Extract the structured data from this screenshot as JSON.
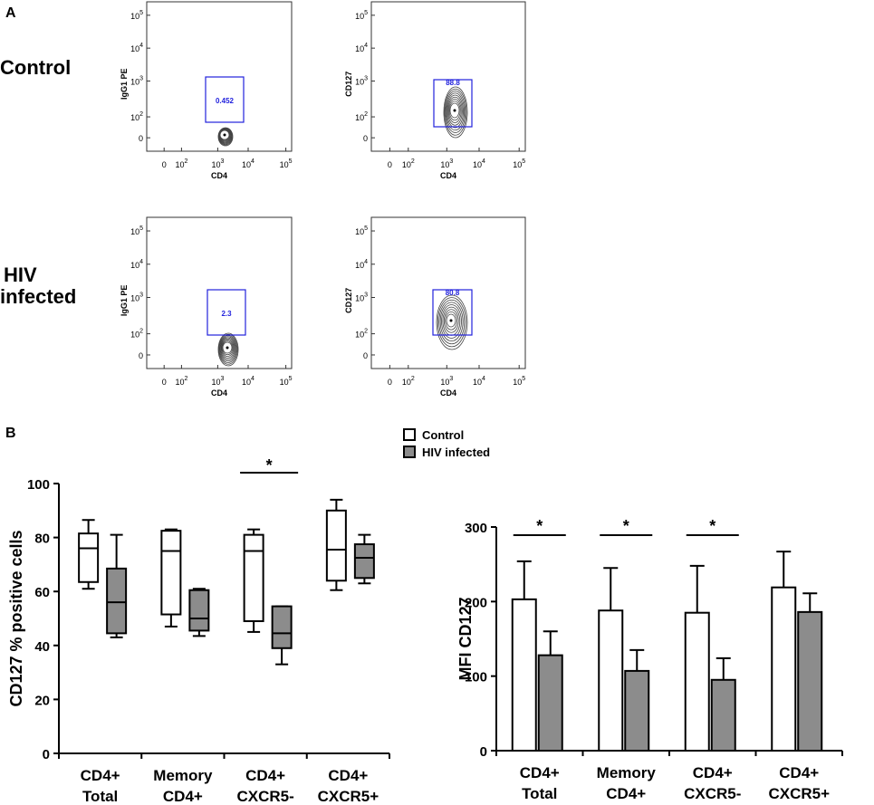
{
  "panel_a_label": "A",
  "panel_b_label": "B",
  "row_labels": {
    "control": "Control",
    "hiv_line1": "HIV",
    "hiv_line2": "infected"
  },
  "gate_color": "#2222dd",
  "flow_panels": [
    {
      "id": "control-igg1",
      "ylabel": "IgG1 PE",
      "xlabel": "CD4",
      "gate_value": "0.452",
      "y_ticks": [
        {
          "base": "10",
          "exp": "5"
        },
        {
          "base": "10",
          "exp": "4"
        },
        {
          "base": "10",
          "exp": "3"
        },
        {
          "base": "10",
          "exp": "2"
        },
        {
          "base": "0",
          "exp": ""
        }
      ],
      "x_ticks": [
        {
          "base": "0",
          "exp": ""
        },
        {
          "base": "10",
          "exp": "2"
        },
        {
          "base": "10",
          "exp": "3"
        },
        {
          "base": "10",
          "exp": "4"
        },
        {
          "base": "10",
          "exp": "5"
        }
      ]
    },
    {
      "id": "control-cd127",
      "ylabel": "CD127",
      "xlabel": "CD4",
      "gate_value": "88.8",
      "y_ticks": [
        {
          "base": "10",
          "exp": "5"
        },
        {
          "base": "10",
          "exp": "4"
        },
        {
          "base": "10",
          "exp": "3"
        },
        {
          "base": "10",
          "exp": "2"
        },
        {
          "base": "0",
          "exp": ""
        }
      ],
      "x_ticks": [
        {
          "base": "0",
          "exp": ""
        },
        {
          "base": "10",
          "exp": "2"
        },
        {
          "base": "10",
          "exp": "3"
        },
        {
          "base": "10",
          "exp": "4"
        },
        {
          "base": "10",
          "exp": "5"
        }
      ]
    },
    {
      "id": "hiv-igg1",
      "ylabel": "IgG1 PE",
      "xlabel": "CD4",
      "gate_value": "2.3",
      "y_ticks": [
        {
          "base": "10",
          "exp": "5"
        },
        {
          "base": "10",
          "exp": "4"
        },
        {
          "base": "10",
          "exp": "3"
        },
        {
          "base": "10",
          "exp": "2"
        },
        {
          "base": "0",
          "exp": ""
        }
      ],
      "x_ticks": [
        {
          "base": "0",
          "exp": ""
        },
        {
          "base": "10",
          "exp": "2"
        },
        {
          "base": "10",
          "exp": "3"
        },
        {
          "base": "10",
          "exp": "4"
        },
        {
          "base": "10",
          "exp": "5"
        }
      ]
    },
    {
      "id": "hiv-cd127",
      "ylabel": "CD127",
      "xlabel": "CD4",
      "gate_value": "80.8",
      "y_ticks": [
        {
          "base": "10",
          "exp": "5"
        },
        {
          "base": "10",
          "exp": "4"
        },
        {
          "base": "10",
          "exp": "3"
        },
        {
          "base": "10",
          "exp": "2"
        },
        {
          "base": "0",
          "exp": ""
        }
      ],
      "x_ticks": [
        {
          "base": "0",
          "exp": ""
        },
        {
          "base": "10",
          "exp": "2"
        },
        {
          "base": "10",
          "exp": "3"
        },
        {
          "base": "10",
          "exp": "4"
        },
        {
          "base": "10",
          "exp": "5"
        }
      ]
    }
  ],
  "legend": [
    {
      "label": "Control",
      "color": "#ffffff"
    },
    {
      "label": "HIV infected",
      "color": "#8c8c8c"
    }
  ],
  "chart_data": [
    {
      "type": "box",
      "ylabel": "CD127 % positive cells",
      "ylim": [
        0,
        100
      ],
      "yticks": [
        0,
        20,
        40,
        60,
        80,
        100
      ],
      "categories": [
        [
          "CD4+",
          "Total"
        ],
        [
          "Memory",
          "CD4+"
        ],
        [
          "CD4+",
          "CXCR5-"
        ],
        [
          "CD4+",
          "CXCR5+"
        ]
      ],
      "series": [
        {
          "name": "Control",
          "color": "#ffffff",
          "boxes": [
            {
              "min": 61,
              "q1": 63.5,
              "median": 76,
              "q3": 81.5,
              "max": 86.5
            },
            {
              "min": 47,
              "q1": 51.5,
              "median": 75,
              "q3": 82.5,
              "max": 83
            },
            {
              "min": 45,
              "q1": 49,
              "median": 75,
              "q3": 81,
              "max": 83
            },
            {
              "min": 60.5,
              "q1": 64,
              "median": 75.5,
              "q3": 90,
              "max": 94
            }
          ]
        },
        {
          "name": "HIV infected",
          "color": "#8c8c8c",
          "boxes": [
            {
              "min": 43,
              "q1": 44.5,
              "median": 56,
              "q3": 68.5,
              "max": 81
            },
            {
              "min": 43.5,
              "q1": 45.5,
              "median": 50,
              "q3": 60.5,
              "max": 61
            },
            {
              "min": 33,
              "q1": 39,
              "median": 44.5,
              "q3": 54.5,
              "max": 54.5
            },
            {
              "min": 63,
              "q1": 65,
              "median": 72.5,
              "q3": 77.5,
              "max": 81
            }
          ]
        }
      ],
      "significance": [
        {
          "category_index": 2,
          "label": "*"
        }
      ]
    },
    {
      "type": "bar",
      "ylabel": "MFI CD127",
      "ylim": [
        0,
        300
      ],
      "yticks": [
        0,
        100,
        200,
        300
      ],
      "categories": [
        [
          "CD4+",
          "Total"
        ],
        [
          "Memory",
          "CD4+"
        ],
        [
          "CD4+",
          "CXCR5-"
        ],
        [
          "CD4+",
          "CXCR5+"
        ]
      ],
      "series": [
        {
          "name": "Control",
          "color": "#ffffff",
          "values": [
            203,
            188,
            185,
            219
          ],
          "errors": [
            51,
            57,
            63,
            48
          ]
        },
        {
          "name": "HIV infected",
          "color": "#8c8c8c",
          "values": [
            128,
            107,
            95,
            186
          ],
          "errors": [
            32,
            28,
            29,
            25
          ]
        }
      ],
      "significance": [
        {
          "category_index": 0,
          "label": "*"
        },
        {
          "category_index": 1,
          "label": "*"
        },
        {
          "category_index": 2,
          "label": "*"
        }
      ]
    }
  ]
}
